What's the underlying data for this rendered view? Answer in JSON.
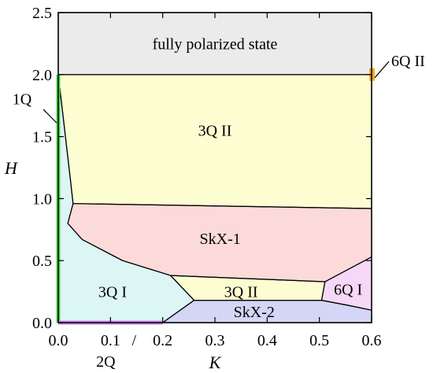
{
  "chart_data": {
    "type": "phase-diagram",
    "title": "",
    "xlabel": "K",
    "ylabel": "H",
    "xlim": [
      0.0,
      0.6
    ],
    "ylim": [
      0.0,
      2.5
    ],
    "xticks": [
      0.0,
      0.1,
      0.2,
      0.3,
      0.4,
      0.5,
      0.6
    ],
    "yticks": [
      0.0,
      0.5,
      1.0,
      1.5,
      2.0,
      2.5
    ],
    "xtick_labels": [
      "0.0",
      "0.1",
      "0.2",
      "0.3",
      "0.4",
      "0.5",
      "0.6"
    ],
    "ytick_labels": [
      "0.0",
      "0.5",
      "1.0",
      "1.5",
      "2.0",
      "2.5"
    ],
    "regions": [
      {
        "name": "fully polarized state",
        "color": "#ebebeb",
        "points": [
          [
            0.0,
            2.0
          ],
          [
            0.6,
            2.0
          ],
          [
            0.6,
            2.5
          ],
          [
            0.0,
            2.5
          ]
        ]
      },
      {
        "name": "3Q II (high field)",
        "color": "#fdfdd2",
        "points": [
          [
            0.0,
            2.0
          ],
          [
            0.6,
            2.0
          ],
          [
            0.6,
            0.92
          ],
          [
            0.0283,
            0.96
          ],
          [
            0.0233,
            1.15
          ],
          [
            0.0,
            2.0
          ]
        ]
      },
      {
        "name": "SkX-1",
        "color": "#fcdada",
        "points": [
          [
            0.0283,
            0.96
          ],
          [
            0.6,
            0.92
          ],
          [
            0.6,
            0.53
          ],
          [
            0.5108,
            0.33
          ],
          [
            0.215,
            0.38
          ],
          [
            0.1233,
            0.5
          ],
          [
            0.0458,
            0.67
          ],
          [
            0.0183,
            0.8
          ],
          [
            0.0283,
            0.96
          ]
        ]
      },
      {
        "name": "3Q I",
        "color": "#dbf6f4",
        "points": [
          [
            0.0,
            0.0
          ],
          [
            0.2,
            0.0
          ],
          [
            0.26,
            0.18
          ],
          [
            0.215,
            0.38
          ],
          [
            0.1233,
            0.5
          ],
          [
            0.0458,
            0.67
          ],
          [
            0.0183,
            0.8
          ],
          [
            0.0283,
            0.96
          ],
          [
            0.0233,
            1.15
          ],
          [
            0.0,
            2.0
          ]
        ]
      },
      {
        "name": "3Q II (low field)",
        "color": "#fdfdd2",
        "points": [
          [
            0.215,
            0.38
          ],
          [
            0.5108,
            0.33
          ],
          [
            0.5042,
            0.18
          ],
          [
            0.26,
            0.18
          ]
        ]
      },
      {
        "name": "SkX-2",
        "color": "#d3d6f4",
        "points": [
          [
            0.2,
            0.0
          ],
          [
            0.6,
            0.0
          ],
          [
            0.6,
            0.1
          ],
          [
            0.5542,
            0.14
          ],
          [
            0.5042,
            0.18
          ],
          [
            0.26,
            0.18
          ]
        ]
      },
      {
        "name": "6Q I",
        "color": "#f6d8f6",
        "points": [
          [
            0.5108,
            0.33
          ],
          [
            0.6,
            0.53
          ],
          [
            0.6,
            0.1
          ],
          [
            0.5542,
            0.14
          ],
          [
            0.5042,
            0.18
          ]
        ]
      }
    ],
    "lines": [
      {
        "name": "1Q",
        "color": "#4cd34c",
        "points": [
          [
            0.0,
            0.0
          ],
          [
            0.0,
            2.0
          ]
        ]
      },
      {
        "name": "2Q",
        "color": "#c77ee6",
        "points": [
          [
            0.0,
            0.0
          ],
          [
            0.2,
            0.0
          ]
        ]
      }
    ],
    "markers": [
      {
        "name": "6Q II",
        "color": "#f4a928",
        "x": 0.6,
        "y": 2.0
      }
    ],
    "labels": [
      {
        "text_key": "fp",
        "x": 0.3,
        "y": 2.25
      },
      {
        "text_key": "q3_hi",
        "x": 0.3,
        "y": 1.55
      },
      {
        "text_key": "skx1",
        "x": 0.31,
        "y": 0.68
      },
      {
        "text_key": "q3_lo",
        "x": 0.35,
        "y": 0.25
      },
      {
        "text_key": "q1_region",
        "x": 0.104,
        "y": 0.25
      },
      {
        "text_key": "skx2",
        "x": 0.375,
        "y": 0.09
      },
      {
        "text_key": "q6_i",
        "x": 0.555,
        "y": 0.27
      }
    ],
    "label_text": {
      "fp": "fully polarized state",
      "q3_hi": "3Q II",
      "skx1": "SkX-1",
      "q3_lo": "3Q II",
      "q1_region": "3Q I",
      "skx2": "SkX-2",
      "q6_i": "6Q I"
    },
    "annotations": {
      "one_q": "1Q",
      "two_q": "2Q",
      "six_q_ii": "6Q II",
      "slash": "/"
    }
  }
}
